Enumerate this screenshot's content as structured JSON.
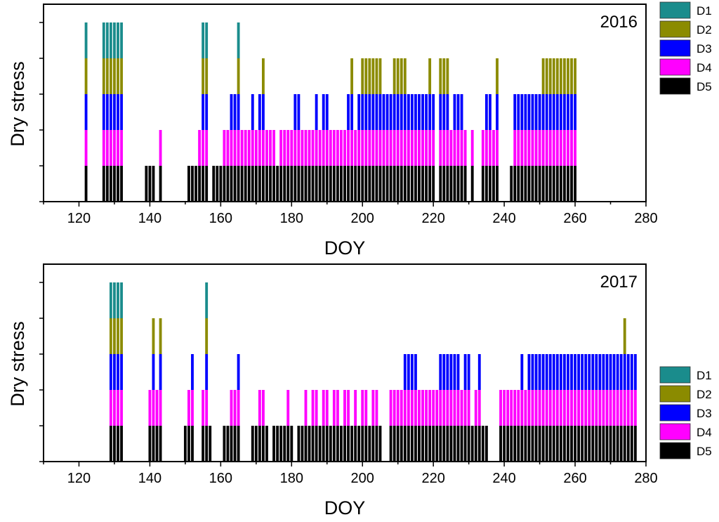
{
  "levels": [
    "D1",
    "D2",
    "D3",
    "D4",
    "D5"
  ],
  "colors": {
    "D1": "#1a8c8c",
    "D2": "#8b8b00",
    "D3": "#0000ff",
    "D4": "#ff00ff",
    "D5": "#000000"
  },
  "chart_data": [
    {
      "type": "bar",
      "title": "2016",
      "xlabel": "DOY",
      "ylabel": "Dry stress",
      "xlim": [
        110,
        280
      ],
      "x_ticks": [
        120,
        140,
        160,
        180,
        200,
        220,
        240,
        260,
        280
      ],
      "ylim": [
        0,
        5
      ],
      "y_ticks": [
        1,
        2,
        3,
        4,
        5
      ],
      "y_tick_labels_shown": false,
      "value_meaning": "number of stacked levels shown (1 = D5 only, 5 = D5 through D1)",
      "legend": [
        "D1",
        "D2",
        "D3",
        "D4",
        "D5"
      ],
      "legend_position": "outside-top-right",
      "doy": [
        122,
        127,
        128,
        129,
        130,
        131,
        132,
        139,
        140,
        141,
        143,
        151,
        152,
        153,
        154,
        155,
        156,
        158,
        159,
        160,
        161,
        162,
        163,
        164,
        165,
        166,
        167,
        168,
        169,
        170,
        171,
        172,
        173,
        174,
        175,
        176,
        177,
        178,
        179,
        180,
        181,
        182,
        183,
        184,
        185,
        186,
        187,
        188,
        189,
        190,
        191,
        192,
        193,
        194,
        195,
        196,
        197,
        198,
        199,
        200,
        201,
        202,
        203,
        204,
        205,
        206,
        207,
        208,
        209,
        210,
        211,
        212,
        213,
        214,
        215,
        216,
        217,
        218,
        219,
        220,
        222,
        223,
        224,
        225,
        226,
        227,
        228,
        229,
        231,
        234,
        235,
        236,
        237,
        238,
        242,
        243,
        244,
        245,
        246,
        247,
        248,
        249,
        250,
        251,
        252,
        253,
        254,
        255,
        256,
        257,
        258,
        259,
        260
      ],
      "values": [
        5,
        5,
        5,
        5,
        5,
        5,
        5,
        1,
        1,
        1,
        2,
        1,
        1,
        1,
        2,
        5,
        5,
        1,
        1,
        1,
        2,
        2,
        3,
        3,
        5,
        2,
        2,
        2,
        3,
        2,
        3,
        4,
        2,
        2,
        2,
        1,
        2,
        2,
        2,
        2,
        3,
        3,
        2,
        2,
        2,
        2,
        3,
        2,
        3,
        3,
        2,
        2,
        2,
        2,
        2,
        3,
        4,
        2,
        3,
        4,
        4,
        4,
        4,
        4,
        4,
        3,
        3,
        3,
        4,
        4,
        4,
        4,
        3,
        3,
        3,
        3,
        3,
        3,
        4,
        3,
        4,
        4,
        4,
        2,
        3,
        3,
        3,
        2,
        2,
        2,
        3,
        3,
        2,
        4,
        1,
        3,
        3,
        3,
        3,
        3,
        3,
        3,
        3,
        4,
        4,
        4,
        4,
        4,
        4,
        4,
        4,
        4,
        4
      ]
    },
    {
      "type": "bar",
      "title": "2017",
      "xlabel": "DOY",
      "ylabel": "Dry stress",
      "xlim": [
        110,
        280
      ],
      "x_ticks": [
        120,
        140,
        160,
        180,
        200,
        220,
        240,
        260,
        280
      ],
      "ylim": [
        0,
        5
      ],
      "y_ticks": [
        1,
        2,
        3,
        4,
        5
      ],
      "y_tick_labels_shown": false,
      "value_meaning": "number of stacked levels shown (1 = D5 only, 5 = D5 through D1)",
      "legend": [
        "D1",
        "D2",
        "D3",
        "D4",
        "D5"
      ],
      "legend_position": "outside-bottom-right",
      "doy": [
        129,
        130,
        131,
        132,
        140,
        141,
        142,
        143,
        150,
        151,
        152,
        155,
        156,
        157,
        161,
        162,
        163,
        164,
        165,
        169,
        170,
        171,
        172,
        173,
        175,
        176,
        177,
        178,
        179,
        180,
        182,
        183,
        184,
        185,
        186,
        187,
        188,
        189,
        190,
        191,
        192,
        193,
        194,
        195,
        196,
        197,
        198,
        199,
        200,
        201,
        202,
        203,
        204,
        205,
        208,
        209,
        210,
        211,
        212,
        213,
        214,
        215,
        216,
        217,
        218,
        219,
        220,
        221,
        222,
        223,
        224,
        225,
        226,
        227,
        228,
        229,
        230,
        231,
        232,
        233,
        234,
        235,
        239,
        240,
        241,
        242,
        243,
        244,
        245,
        246,
        247,
        248,
        249,
        250,
        251,
        252,
        253,
        254,
        255,
        256,
        257,
        258,
        259,
        260,
        261,
        262,
        263,
        264,
        265,
        266,
        267,
        268,
        269,
        270,
        271,
        272,
        273,
        274,
        275,
        276,
        277
      ],
      "values": [
        5,
        5,
        5,
        5,
        2,
        4,
        2,
        4,
        1,
        2,
        3,
        2,
        5,
        1,
        1,
        1,
        2,
        2,
        3,
        1,
        1,
        2,
        2,
        1,
        1,
        1,
        1,
        1,
        2,
        1,
        1,
        1,
        2,
        1,
        2,
        2,
        1,
        2,
        2,
        1,
        2,
        2,
        1,
        2,
        2,
        1,
        2,
        1,
        2,
        2,
        1,
        2,
        2,
        1,
        2,
        2,
        2,
        2,
        3,
        3,
        3,
        3,
        2,
        2,
        2,
        2,
        2,
        2,
        3,
        3,
        3,
        3,
        3,
        3,
        2,
        3,
        3,
        1,
        2,
        3,
        1,
        1,
        2,
        2,
        2,
        2,
        2,
        2,
        3,
        2,
        3,
        3,
        3,
        3,
        3,
        3,
        3,
        3,
        3,
        3,
        3,
        3,
        3,
        3,
        3,
        3,
        3,
        3,
        3,
        3,
        3,
        3,
        3,
        3,
        3,
        3,
        3,
        4,
        3,
        3,
        3
      ]
    }
  ]
}
